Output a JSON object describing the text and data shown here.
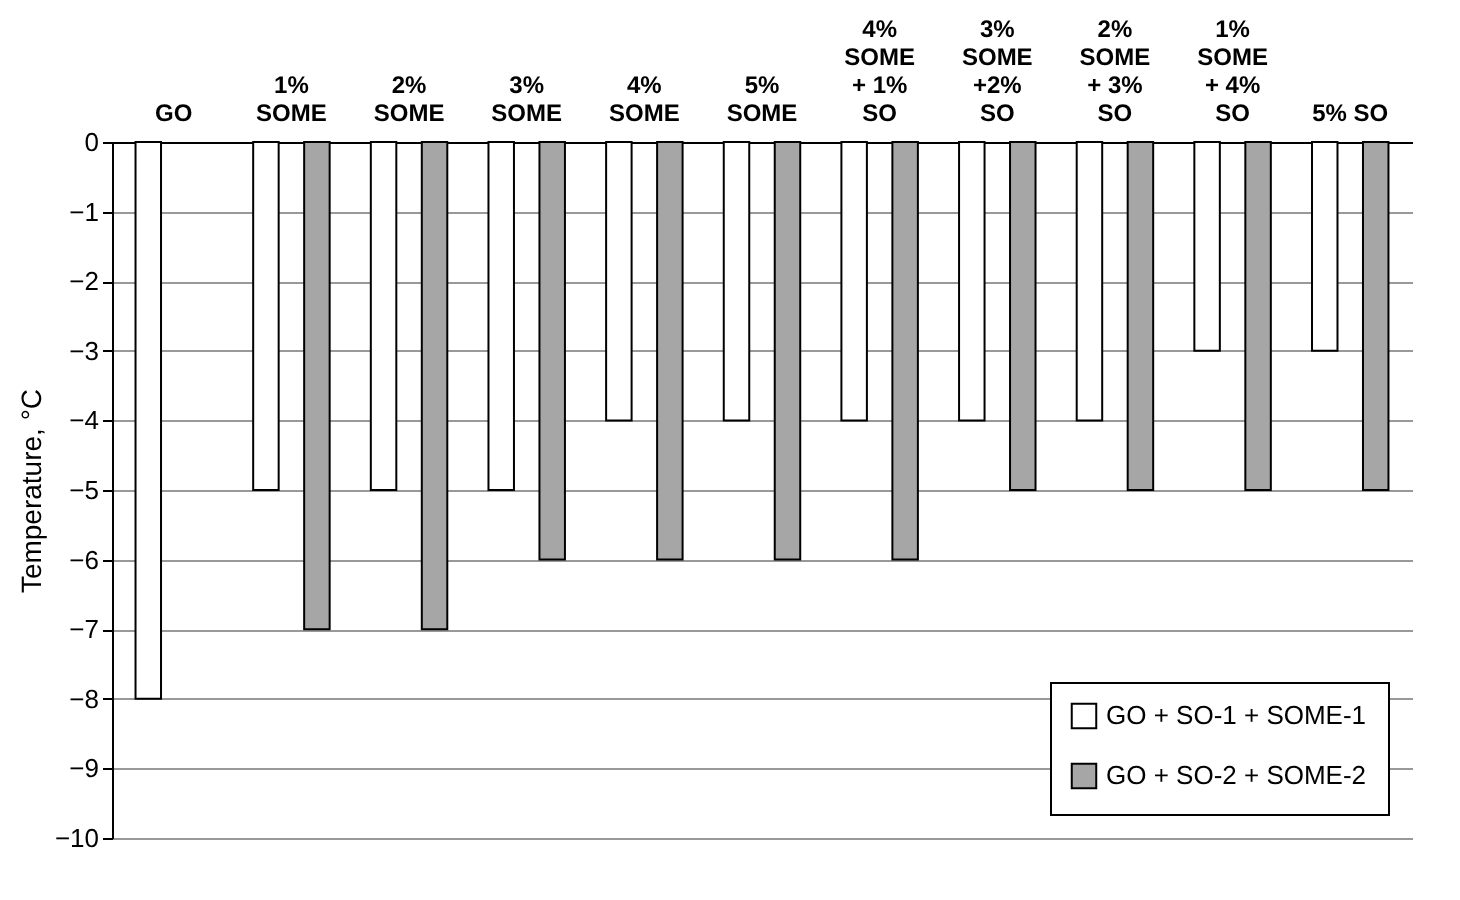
{
  "chart_data": {
    "type": "bar",
    "ylabel": "Temperature, °C",
    "categories": [
      "GO",
      "1%\nSOME",
      "2%\nSOME",
      "3%\nSOME",
      "4%\nSOME",
      "5%\nSOME",
      "4%\nSOME\n+ 1%\nSO",
      "3%\nSOME\n+2%\nSO",
      "2%\nSOME\n+ 3%\nSO",
      "1%\nSOME\n+ 4%\nSO",
      "5% SO"
    ],
    "series": [
      {
        "name": "GO + SO-1 + SOME-1",
        "color": "#ffffff",
        "values": [
          -8,
          -5,
          -5,
          -5,
          -4,
          -4,
          -4,
          -4,
          -4,
          -3,
          -3
        ]
      },
      {
        "name": "GO + SO-2 + SOME-2",
        "color": "#a6a6a6",
        "values": [
          null,
          -7,
          -7,
          -6,
          -6,
          -6,
          -6,
          -5,
          -5,
          -5,
          -5
        ]
      }
    ],
    "ylim": [
      -10,
      0
    ],
    "yticks": [
      -10,
      -9,
      -8,
      -7,
      -6,
      -5,
      -4,
      -3,
      -2,
      -1,
      0
    ],
    "grid": "y",
    "legend": "bottom right"
  }
}
